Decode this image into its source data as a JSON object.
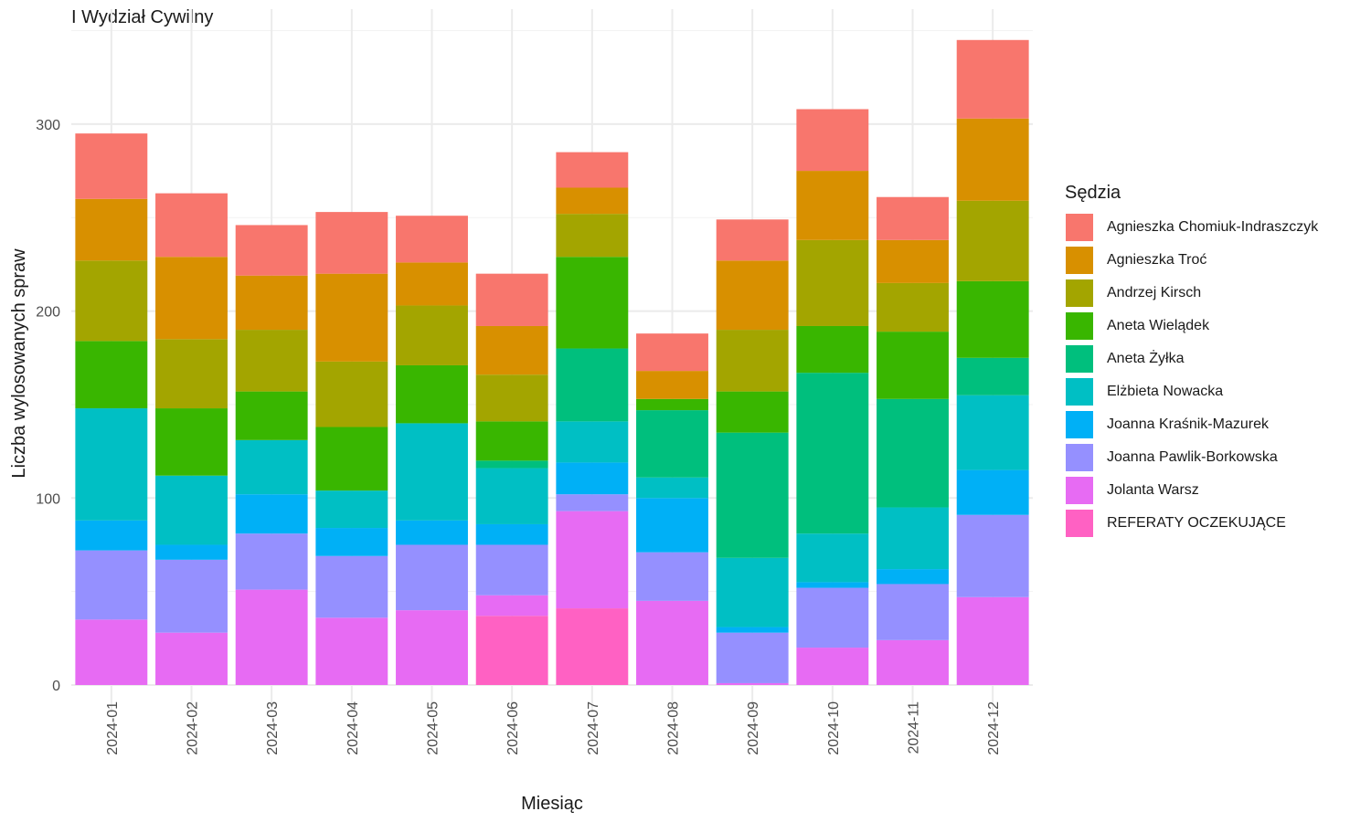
{
  "chart_data": {
    "type": "bar",
    "stacked": true,
    "title": "I Wydział Cywilny",
    "xlabel": "Miesiąc",
    "ylabel": "Liczba wylosowanych spraw",
    "legend_title": "Sędzia",
    "legend_position": "right",
    "grid": true,
    "ylim": [
      0,
      350
    ],
    "yticks": [
      0,
      100,
      200,
      300
    ],
    "categories": [
      "2024-01",
      "2024-02",
      "2024-03",
      "2024-04",
      "2024-05",
      "2024-06",
      "2024-07",
      "2024-08",
      "2024-09",
      "2024-10",
      "2024-11",
      "2024-12"
    ],
    "series": [
      {
        "name": "REFERATY OCZEKUJĄCE",
        "color": "#FF61C3",
        "values": [
          0,
          0,
          0,
          0,
          0,
          37,
          41,
          0,
          0,
          0,
          0,
          0
        ]
      },
      {
        "name": "Jolanta Warsz",
        "color": "#E76BF3",
        "values": [
          35,
          28,
          51,
          36,
          40,
          11,
          52,
          45,
          1,
          20,
          24,
          47
        ]
      },
      {
        "name": "Joanna Pawlik-Borkowska",
        "color": "#9590FF",
        "values": [
          37,
          39,
          30,
          33,
          35,
          27,
          9,
          26,
          27,
          32,
          30,
          44
        ]
      },
      {
        "name": "Joanna Kraśnik-Mazurek",
        "color": "#00B0F6",
        "values": [
          16,
          8,
          21,
          15,
          13,
          11,
          17,
          29,
          3,
          3,
          8,
          24
        ]
      },
      {
        "name": "Elżbieta Nowacka",
        "color": "#00BFC4",
        "values": [
          60,
          37,
          29,
          20,
          52,
          30,
          22,
          11,
          37,
          26,
          33,
          40
        ]
      },
      {
        "name": "Aneta Żyłka",
        "color": "#00BF7D",
        "values": [
          0,
          0,
          0,
          0,
          0,
          4,
          39,
          36,
          67,
          86,
          58,
          20
        ]
      },
      {
        "name": "Aneta Wielądek",
        "color": "#39B600",
        "values": [
          36,
          36,
          26,
          34,
          31,
          21,
          49,
          6,
          22,
          25,
          36,
          41
        ]
      },
      {
        "name": "Andrzej Kirsch",
        "color": "#A3A500",
        "values": [
          43,
          37,
          33,
          35,
          32,
          25,
          23,
          0,
          33,
          46,
          26,
          43
        ]
      },
      {
        "name": "Agnieszka Troć",
        "color": "#D89000",
        "values": [
          33,
          44,
          29,
          47,
          23,
          26,
          14,
          15,
          37,
          37,
          23,
          44
        ]
      },
      {
        "name": "Agnieszka Chomiuk-Indraszczyk",
        "color": "#F8766D",
        "values": [
          35,
          34,
          27,
          33,
          25,
          28,
          19,
          20,
          22,
          33,
          23,
          42
        ]
      }
    ]
  }
}
